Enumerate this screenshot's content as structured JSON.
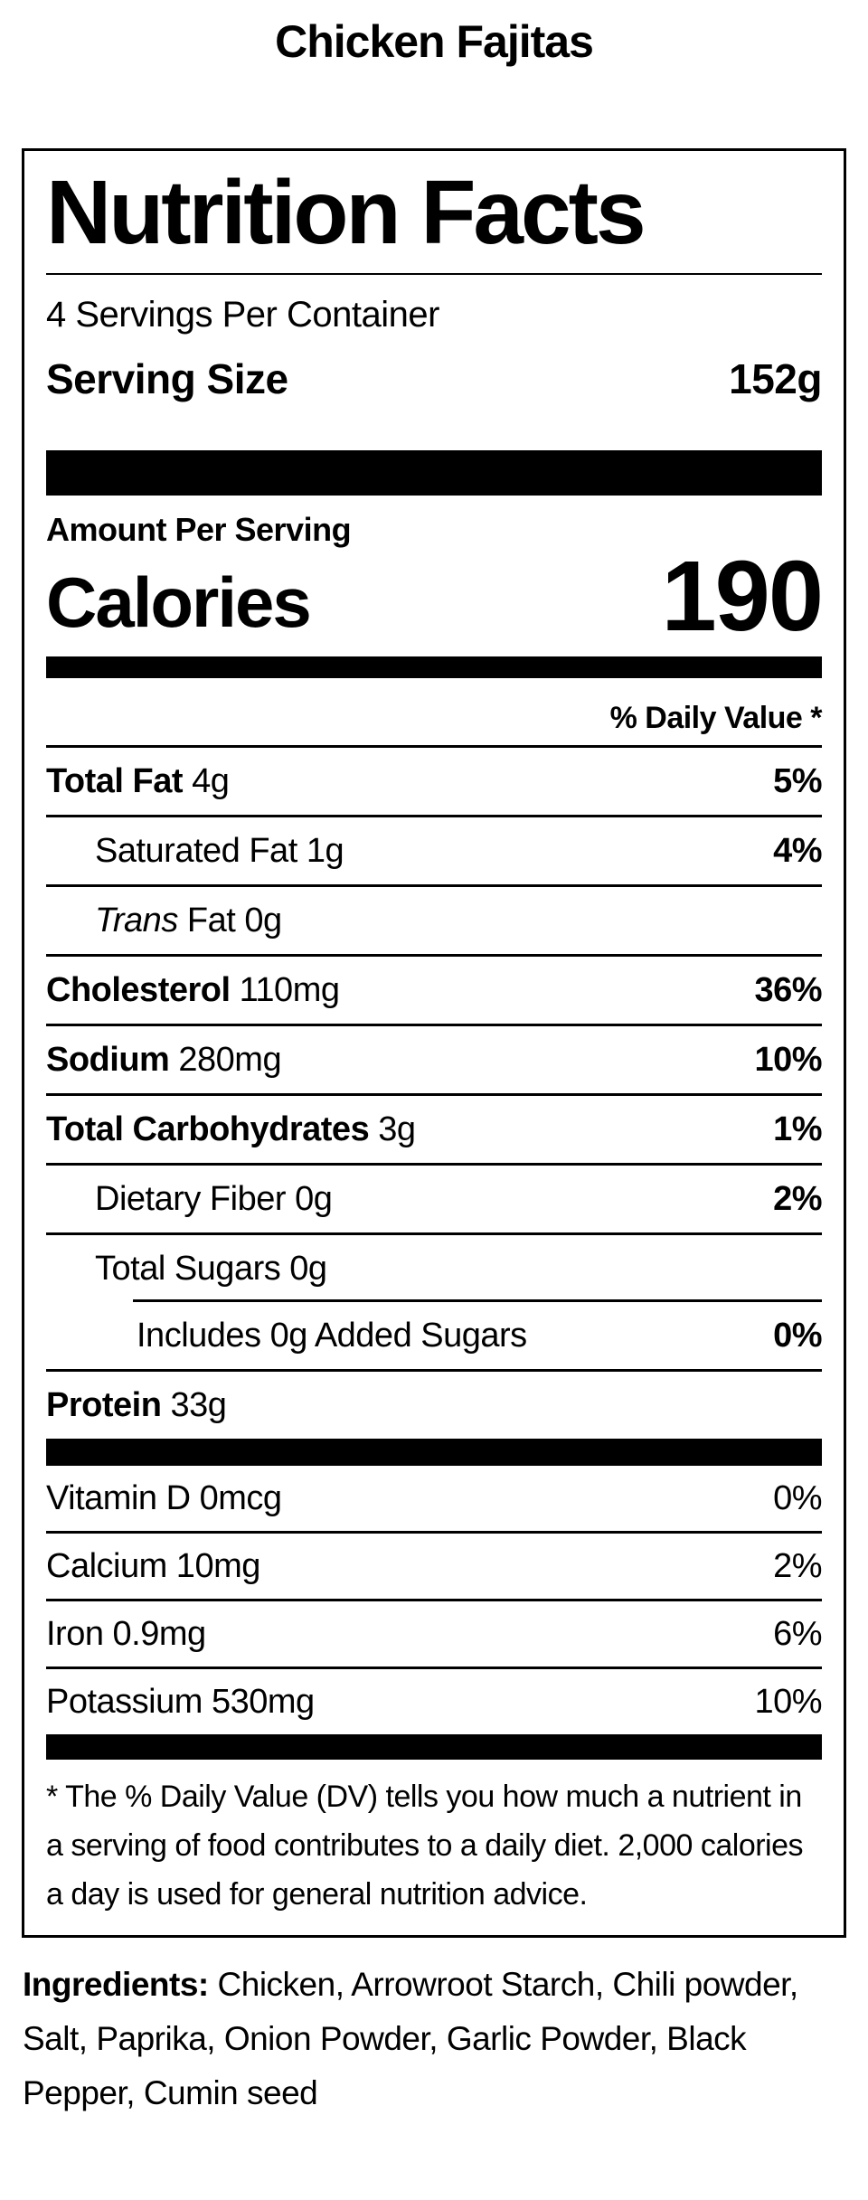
{
  "page": {
    "title": "Chicken Fajitas"
  },
  "label": {
    "title": "Nutrition Facts",
    "servings_per_container": "4 Servings Per Container",
    "serving_size": {
      "label": "Serving Size",
      "value": "152g"
    },
    "amount_per_serving": "Amount Per Serving",
    "calories": {
      "label": "Calories",
      "value": "190"
    },
    "daily_value_header": "% Daily Value *",
    "nutrients": [
      {
        "name": "Total Fat",
        "amount": "4g",
        "dv": "5%"
      },
      {
        "name": "Saturated Fat",
        "amount": "1g",
        "dv": "4%"
      },
      {
        "name_italic": "Trans",
        "name": "Fat",
        "amount": "0g",
        "dv": ""
      },
      {
        "name": "Cholesterol",
        "amount": "110mg",
        "dv": "36%"
      },
      {
        "name": "Sodium",
        "amount": "280mg",
        "dv": "10%"
      },
      {
        "name": "Total Carbohydrates",
        "amount": "3g",
        "dv": "1%"
      },
      {
        "name": "Dietary Fiber",
        "amount": "0g",
        "dv": "2%"
      },
      {
        "name": "Total Sugars",
        "amount": "0g",
        "dv": ""
      },
      {
        "name": "Includes 0g Added Sugars",
        "amount": "",
        "dv": "0%"
      },
      {
        "name": "Protein",
        "amount": "33g",
        "dv": ""
      }
    ],
    "vitamins": [
      {
        "name": "Vitamin D 0mcg",
        "dv": "0%"
      },
      {
        "name": "Calcium 10mg",
        "dv": "2%"
      },
      {
        "name": "Iron 0.9mg",
        "dv": "6%"
      },
      {
        "name": "Potassium 530mg",
        "dv": "10%"
      }
    ],
    "footnote": "* The % Daily Value (DV) tells you how much a nutrient in a serving of food contributes to a daily diet. 2,000 calories a day is used for general nutrition advice."
  },
  "ingredients": {
    "label": "Ingredients:",
    "text": "Chicken, Arrowroot Starch, Chili powder, Salt, Paprika, Onion Powder, Garlic Powder, Black Pepper, Cumin seed"
  },
  "colors": {
    "text": "#000000",
    "background": "#ffffff"
  }
}
